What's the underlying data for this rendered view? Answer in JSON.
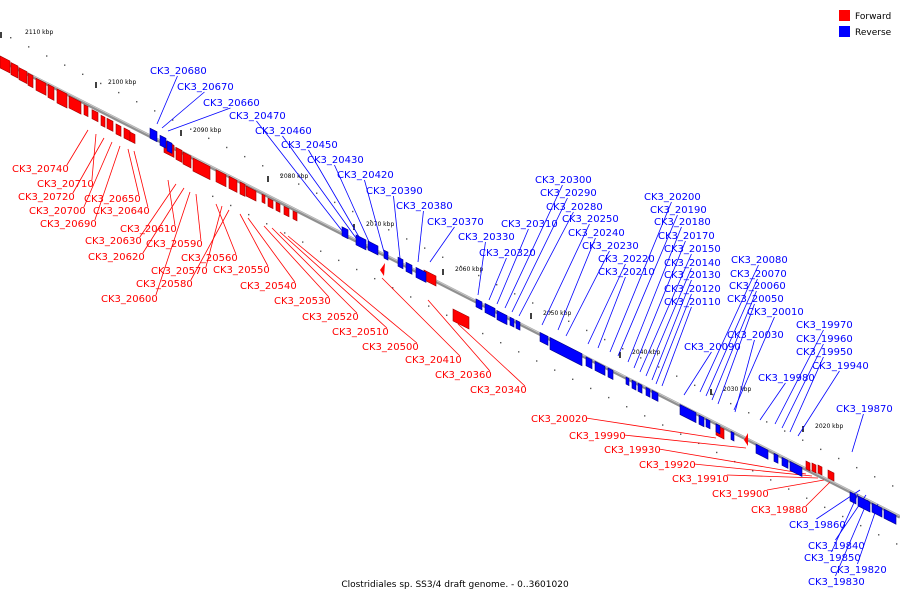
{
  "caption": "Clostridiales sp. SS3/4 draft genome. - 0..3601020",
  "legend": [
    {
      "label": "Forward",
      "color": "#ff0000"
    },
    {
      "label": "Reverse",
      "color": "#0000ff"
    }
  ],
  "colors": {
    "forward": "#ff0000",
    "reverse": "#0000ff",
    "backbone": "#808080"
  },
  "scale_labels": [
    "2110 kbp",
    "2100 kbp",
    "2090 kbp",
    "2080 kbp",
    "2070 kbp",
    "2060 kbp",
    "2050 kbp",
    "2040 kbp",
    "2030 kbp",
    "2020 kbp"
  ],
  "forward_genes": [
    "CK3_20740",
    "CK3_20710",
    "CK3_20720",
    "CK3_20700",
    "CK3_20690",
    "CK3_20650",
    "CK3_20640",
    "CK3_20610",
    "CK3_20630",
    "CK3_20620",
    "CK3_20590",
    "CK3_20560",
    "CK3_20570",
    "CK3_20580",
    "CK3_20600",
    "CK3_20550",
    "CK3_20540",
    "CK3_20530",
    "CK3_20520",
    "CK3_20510",
    "CK3_20500",
    "CK3_20410",
    "CK3_20360",
    "CK3_20340",
    "CK3_20020",
    "CK3_19990",
    "CK3_19930",
    "CK3_19920",
    "CK3_19910",
    "CK3_19900",
    "CK3_19880"
  ],
  "reverse_genes": [
    "CK3_20680",
    "CK3_20670",
    "CK3_20660",
    "CK3_20470",
    "CK3_20460",
    "CK3_20450",
    "CK3_20430",
    "CK3_20420",
    "CK3_20390",
    "CK3_20380",
    "CK3_20370",
    "CK3_20330",
    "CK3_20320",
    "CK3_20310",
    "CK3_20300",
    "CK3_20290",
    "CK3_20280",
    "CK3_20250",
    "CK3_20240",
    "CK3_20230",
    "CK3_20220",
    "CK3_20210",
    "CK3_20200",
    "CK3_20190",
    "CK3_20180",
    "CK3_20170",
    "CK3_20150",
    "CK3_20140",
    "CK3_20130",
    "CK3_20120",
    "CK3_20110",
    "CK3_20090",
    "CK3_20080",
    "CK3_20070",
    "CK3_20060",
    "CK3_20050",
    "CK3_20010",
    "CK3_20030",
    "CK3_19980",
    "CK3_19970",
    "CK3_19960",
    "CK3_19950",
    "CK3_19940",
    "CK3_19870",
    "CK3_19860",
    "CK3_19840",
    "CK3_19850",
    "CK3_19820",
    "CK3_19830"
  ]
}
